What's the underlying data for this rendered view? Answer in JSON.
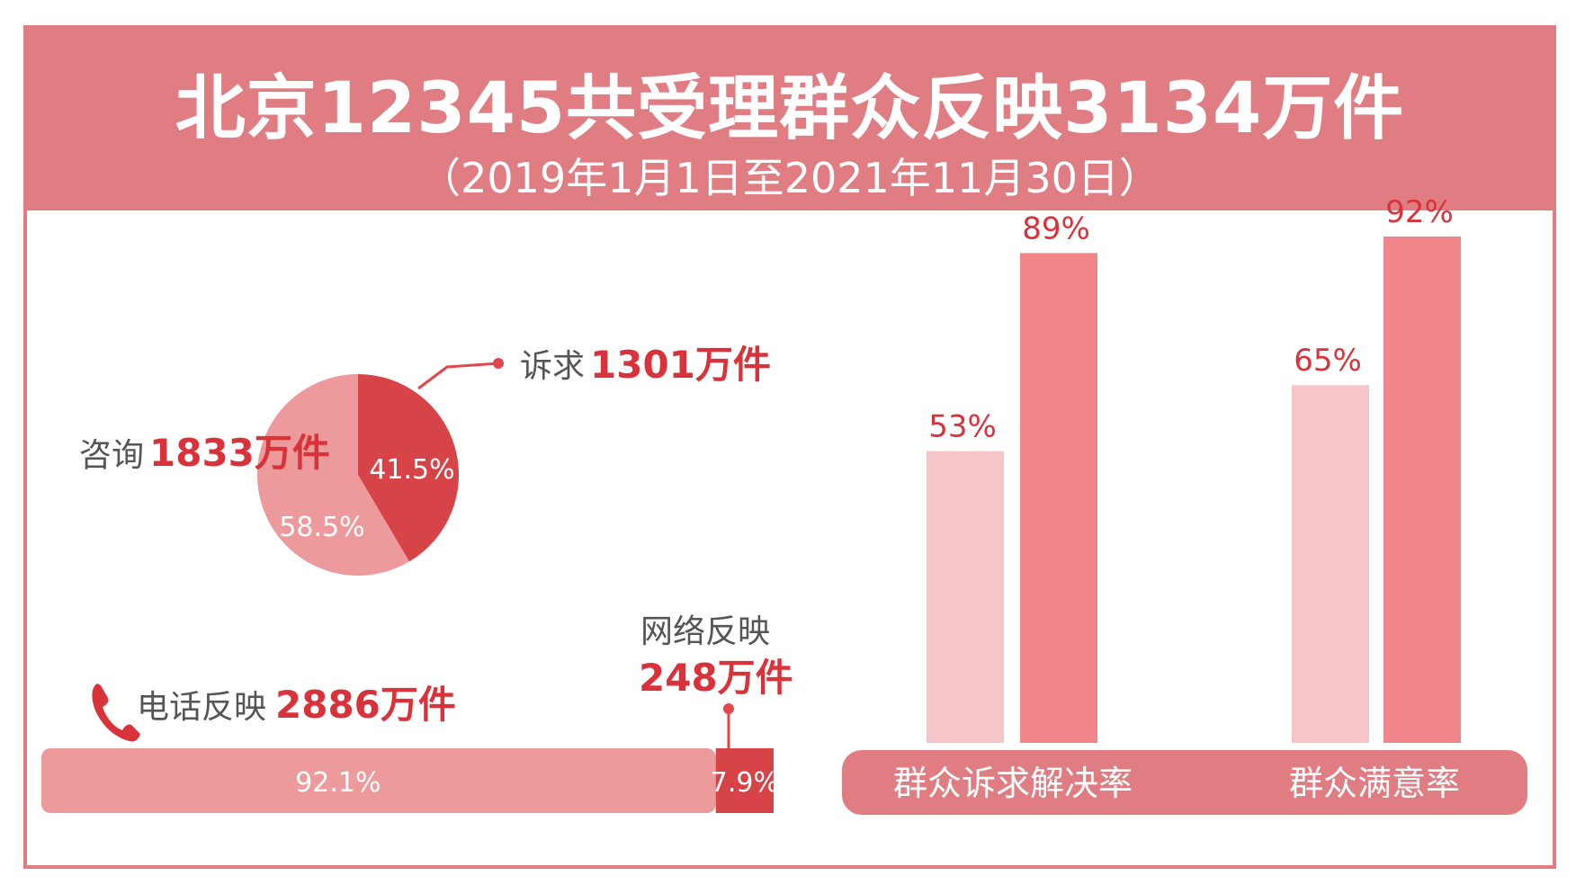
{
  "header": {
    "title": "北京12345共受理群众反映3134万件",
    "subtitle": "（2019年1月1日至2021年11月30日）"
  },
  "colors": {
    "header_bg": "#e07d82",
    "dark_red": "#d64448",
    "light_pink": "#f6c5c8",
    "mid_pink": "#f0868a",
    "text_red": "#d8333a",
    "pie_light": "#ed9a9c"
  },
  "chart_data": [
    {
      "type": "pie",
      "slices": [
        {
          "label": "诉求",
          "amount_text": "1301万件",
          "value": 41.5,
          "value_label": "41.5%"
        },
        {
          "label": "咨询",
          "amount_text": "1833万件",
          "value": 58.5,
          "value_label": "58.5%"
        }
      ]
    },
    {
      "type": "bar",
      "orientation": "horizontal-stacked",
      "segments": [
        {
          "label": "电话反映",
          "amount_text": "2886万件",
          "value": 92.1,
          "value_label": "92.1%",
          "icon": "phone-icon"
        },
        {
          "label": "网络反映",
          "amount_text": "248万件",
          "value": 7.9,
          "value_label": "7.9%"
        }
      ]
    },
    {
      "type": "bar",
      "categories": [
        "群众诉求解决率",
        "群众满意率"
      ],
      "series": [
        {
          "values": [
            53,
            65
          ],
          "labels": [
            "53%",
            "65%"
          ]
        },
        {
          "values": [
            89,
            92
          ],
          "labels": [
            "89%",
            "92%"
          ]
        }
      ],
      "ylim": [
        0,
        100
      ]
    }
  ]
}
